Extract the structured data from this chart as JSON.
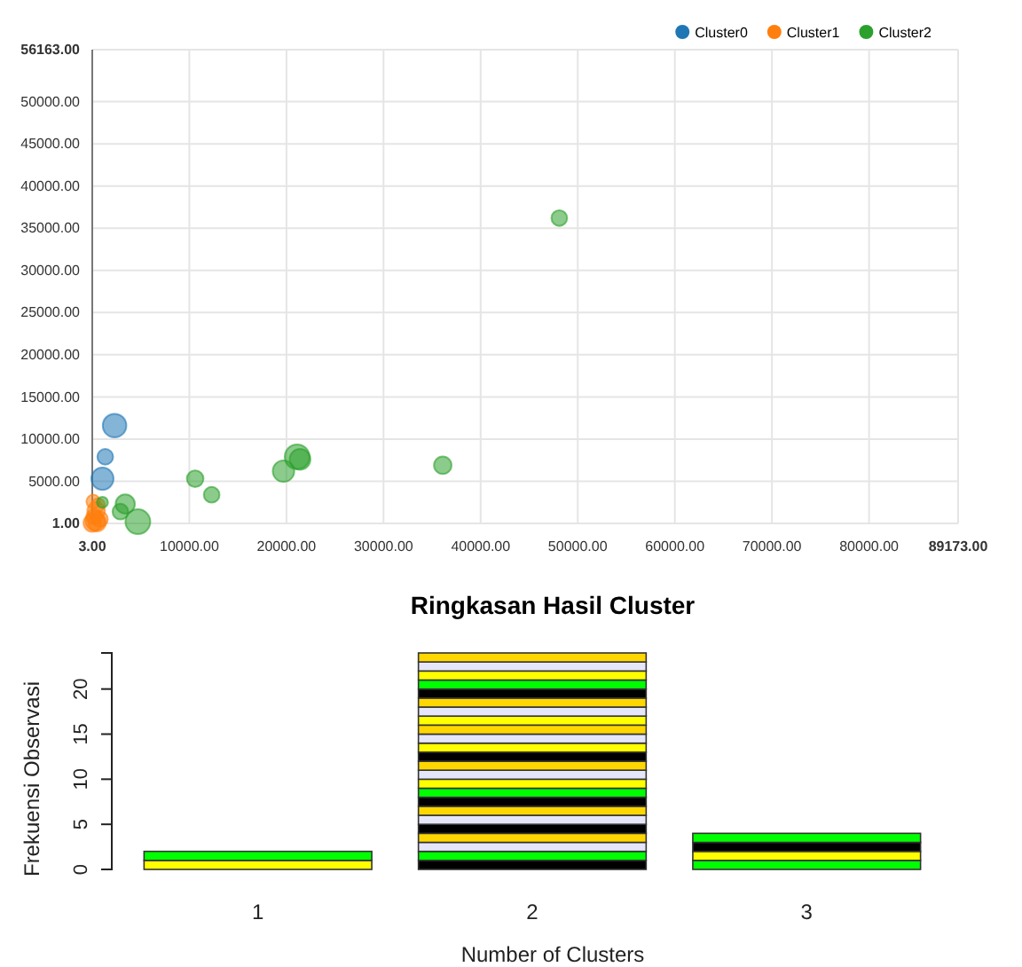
{
  "chart_data": [
    {
      "type": "bubble",
      "legend": "top right",
      "grid": true,
      "xlim": [
        3,
        89173
      ],
      "ylim": [
        1,
        56163
      ],
      "xticks": [
        {
          "value": 3,
          "label": "3.00"
        },
        {
          "value": 10000,
          "label": "10000.00"
        },
        {
          "value": 20000,
          "label": "20000.00"
        },
        {
          "value": 30000,
          "label": "30000.00"
        },
        {
          "value": 40000,
          "label": "40000.00"
        },
        {
          "value": 50000,
          "label": "50000.00"
        },
        {
          "value": 60000,
          "label": "60000.00"
        },
        {
          "value": 70000,
          "label": "70000.00"
        },
        {
          "value": 80000,
          "label": "80000.00"
        },
        {
          "value": 89173,
          "label": "89173.00"
        }
      ],
      "yticks": [
        {
          "value": 1,
          "label": "1.00"
        },
        {
          "value": 5000,
          "label": "5000.00"
        },
        {
          "value": 10000,
          "label": "10000.00"
        },
        {
          "value": 15000,
          "label": "15000.00"
        },
        {
          "value": 20000,
          "label": "20000.00"
        },
        {
          "value": 25000,
          "label": "25000.00"
        },
        {
          "value": 30000,
          "label": "30000.00"
        },
        {
          "value": 35000,
          "label": "35000.00"
        },
        {
          "value": 40000,
          "label": "40000.00"
        },
        {
          "value": 45000,
          "label": "45000.00"
        },
        {
          "value": 50000,
          "label": "50000.00"
        },
        {
          "value": 56163,
          "label": "56163.00"
        }
      ],
      "series": [
        {
          "name": "Cluster0",
          "color": "#1f77b4",
          "x": [
            2300,
            1340,
            1050
          ],
          "values": [
            11600,
            7900,
            5300
          ],
          "sizes": [
            0.9,
            0.4,
            0.8
          ]
        },
        {
          "name": "Cluster1",
          "color": "#ff7f0e",
          "x": [
            3,
            200,
            400,
            600,
            300,
            800,
            100,
            500
          ],
          "values": [
            50,
            800,
            1500,
            2200,
            300,
            500,
            2600,
            100
          ],
          "sizes": [
            0.5,
            0.4,
            0.5,
            0.3,
            0.6,
            0.4,
            0.3,
            0.5
          ]
        },
        {
          "name": "Cluster2",
          "color": "#2ca02c",
          "x": [
            1050,
            3400,
            2900,
            4700,
            10600,
            12300,
            19700,
            21100,
            21400,
            36100,
            48100
          ],
          "values": [
            2500,
            2300,
            1400,
            200,
            5300,
            3400,
            6200,
            7900,
            7600,
            6900,
            36200
          ],
          "sizes": [
            0.2,
            0.6,
            0.4,
            1,
            0.45,
            0.4,
            0.75,
            1,
            0.7,
            0.5,
            0.4
          ]
        }
      ]
    },
    {
      "type": "bar",
      "title": "Ringkasan Hasil Cluster",
      "xlabel": "Number of Clusters",
      "ylabel": "Frekuensi Observasi",
      "stacked": true,
      "categories": [
        "1",
        "2",
        "3"
      ],
      "ylim": [
        0,
        24
      ],
      "yticks": [
        0,
        5,
        10,
        15,
        20
      ],
      "series": [
        {
          "values": [
            1,
            1,
            1
          ],
          "colors": [
            "#ffff00",
            "#000000",
            "#00ff00"
          ]
        },
        {
          "values": [
            1,
            1,
            1
          ],
          "colors": [
            "#00ff00",
            "#00ff00",
            "#ffff00"
          ]
        },
        {
          "values": [
            null,
            1,
            1
          ],
          "colors": [
            null,
            "#e6e6fa",
            "#000000"
          ]
        },
        {
          "values": [
            null,
            1,
            1
          ],
          "colors": [
            null,
            "#ffd700",
            "#00ff00"
          ]
        },
        {
          "values": [
            null,
            1,
            null
          ],
          "colors": [
            null,
            "#000000",
            null
          ]
        },
        {
          "values": [
            null,
            1,
            null
          ],
          "colors": [
            null,
            "#e6e6fa",
            null
          ]
        },
        {
          "values": [
            null,
            1,
            null
          ],
          "colors": [
            null,
            "#ffd700",
            null
          ]
        },
        {
          "values": [
            null,
            1,
            null
          ],
          "colors": [
            null,
            "#000000",
            null
          ]
        },
        {
          "values": [
            null,
            1,
            null
          ],
          "colors": [
            null,
            "#00ff00",
            null
          ]
        },
        {
          "values": [
            null,
            1,
            null
          ],
          "colors": [
            null,
            "#ffff00",
            null
          ]
        },
        {
          "values": [
            null,
            1,
            null
          ],
          "colors": [
            null,
            "#e6e6fa",
            null
          ]
        },
        {
          "values": [
            null,
            1,
            null
          ],
          "colors": [
            null,
            "#ffd700",
            null
          ]
        },
        {
          "values": [
            null,
            1,
            null
          ],
          "colors": [
            null,
            "#000000",
            null
          ]
        },
        {
          "values": [
            null,
            1,
            null
          ],
          "colors": [
            null,
            "#ffff00",
            null
          ]
        },
        {
          "values": [
            null,
            1,
            null
          ],
          "colors": [
            null,
            "#e6e6fa",
            null
          ]
        },
        {
          "values": [
            null,
            1,
            null
          ],
          "colors": [
            null,
            "#ffd700",
            null
          ]
        },
        {
          "values": [
            null,
            1,
            null
          ],
          "colors": [
            null,
            "#ffff00",
            null
          ]
        },
        {
          "values": [
            null,
            1,
            null
          ],
          "colors": [
            null,
            "#e6e6fa",
            null
          ]
        },
        {
          "values": [
            null,
            1,
            null
          ],
          "colors": [
            null,
            "#ffd700",
            null
          ]
        },
        {
          "values": [
            null,
            1,
            null
          ],
          "colors": [
            null,
            "#000000",
            null
          ]
        },
        {
          "values": [
            null,
            1,
            null
          ],
          "colors": [
            null,
            "#00ff00",
            null
          ]
        },
        {
          "values": [
            null,
            1,
            null
          ],
          "colors": [
            null,
            "#ffff00",
            null
          ]
        },
        {
          "values": [
            null,
            1,
            null
          ],
          "colors": [
            null,
            "#e6e6fa",
            null
          ]
        },
        {
          "values": [
            null,
            1,
            null
          ],
          "colors": [
            null,
            "#ffd700",
            null
          ]
        }
      ]
    }
  ]
}
